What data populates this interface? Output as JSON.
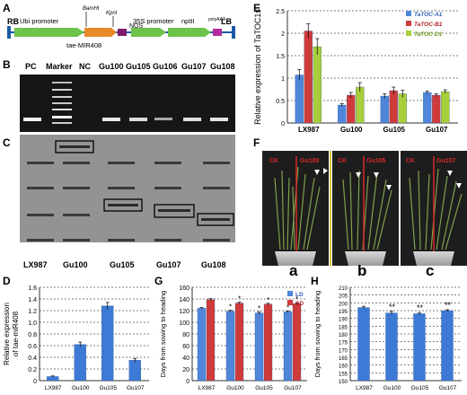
{
  "panels": {
    "A": {
      "label": "A",
      "rb": "RB",
      "lb": "LB",
      "ubi": "Ubi promoter",
      "mir": "tae-MIR408",
      "bamhi": "BamHI",
      "kpni": "KpnI",
      "nos": "NOS",
      "p35s": "35S promoter",
      "nptii": "nptII",
      "polya": "polyAAA",
      "colors": {
        "line": "#1a5aa8",
        "ubi": "#6cc24a",
        "mir": "#e8892a",
        "nos": "#7f1a6e",
        "p35s": "#6cc24a",
        "nptii": "#6cc24a",
        "polya": "#b02aa0"
      }
    },
    "B": {
      "label": "B",
      "lanes": [
        "PC",
        "Marker",
        "NC",
        "Gu100",
        "Gu105",
        "Gu106",
        "Gu107",
        "Gu108"
      ]
    },
    "C": {
      "label": "C",
      "lanes": [
        "LX987",
        "Gu100",
        "Gu105",
        "Gu107",
        "Gu108"
      ]
    },
    "F": {
      "label": "F",
      "ck": "CK",
      "gu100": "Gu100",
      "gu105": "Gu105",
      "gu107": "Gu107",
      "a": "a",
      "b": "b",
      "c": "c"
    }
  },
  "chart_data": [
    {
      "panel": "D",
      "type": "bar",
      "categories": [
        "LX987",
        "Gu100",
        "Gu105",
        "Gu107"
      ],
      "values": [
        0.07,
        0.62,
        1.28,
        0.35
      ],
      "errors": [
        0.01,
        0.04,
        0.06,
        0.03
      ],
      "ylabel": "Relative expression\nof tae-miR408",
      "ylim": [
        0,
        1.6
      ],
      "yticks": [
        "0",
        "0.2",
        "0.4",
        "0.6",
        "0.8",
        "1.0",
        "1.2",
        "1.4",
        "1.6"
      ],
      "grid": true,
      "color": "#3c7ad6"
    },
    {
      "panel": "E",
      "type": "bar",
      "categories": [
        "LX987",
        "Gu100",
        "Gu105",
        "Gu107"
      ],
      "series": [
        {
          "name": "TaTOC-A1",
          "values": [
            1.07,
            0.4,
            0.6,
            0.68
          ],
          "errors": [
            0.12,
            0.03,
            0.05,
            0.03
          ],
          "color": "#4f86d9"
        },
        {
          "name": "TaTOC-B1",
          "values": [
            2.05,
            0.62,
            0.72,
            0.62
          ],
          "errors": [
            0.16,
            0.06,
            0.08,
            0.03
          ],
          "color": "#cf3b3b"
        },
        {
          "name": "TaTOC-D1",
          "values": [
            1.7,
            0.8,
            0.65,
            0.7
          ],
          "errors": [
            0.18,
            0.1,
            0.08,
            0.04
          ],
          "color": "#a6cf3a"
        }
      ],
      "ylabel": "Relative expression of TaTOC1s",
      "ylim": [
        0,
        2.5
      ],
      "yticks": [
        "0",
        "0.5",
        "1",
        "1.5",
        "2",
        "2.5"
      ],
      "grid": true,
      "legend": "top-right"
    },
    {
      "panel": "G",
      "type": "bar",
      "categories": [
        "LX987",
        "Gu100",
        "Gu105",
        "Gu107"
      ],
      "series": [
        {
          "name": "LD",
          "values": [
            124,
            119,
            116,
            118
          ],
          "errors": [
            1.5,
            1.5,
            2,
            1.5
          ],
          "color": "#4f86d9"
        },
        {
          "name": "SD",
          "values": [
            139,
            133,
            131,
            132
          ],
          "errors": [
            1.5,
            1.5,
            1.5,
            1.5
          ],
          "color": "#cf3b3b"
        }
      ],
      "stars": [
        "",
        "**",
        "**",
        "**"
      ],
      "ylabel": "Days from sowing to heading",
      "ylim": [
        0,
        160
      ],
      "yticks": [
        "0",
        "20",
        "40",
        "60",
        "80",
        "100",
        "120",
        "140",
        "160"
      ],
      "grid": true,
      "legend": "top-right"
    },
    {
      "panel": "H",
      "type": "bar",
      "categories": [
        "LX987",
        "Gu100",
        "Gu105",
        "Gu107"
      ],
      "values": [
        197,
        193.5,
        193,
        195
      ],
      "errors": [
        0.8,
        1.0,
        0.8,
        0.6
      ],
      "stars": [
        "",
        "**",
        "**",
        "**"
      ],
      "ylabel": "Days from sowing to heading",
      "ylim": [
        150,
        210
      ],
      "yticks": [
        "150",
        "155",
        "160",
        "165",
        "170",
        "175",
        "180",
        "185",
        "190",
        "195",
        "200",
        "205",
        "210"
      ],
      "grid": true,
      "color": "#3c7ad6"
    }
  ]
}
